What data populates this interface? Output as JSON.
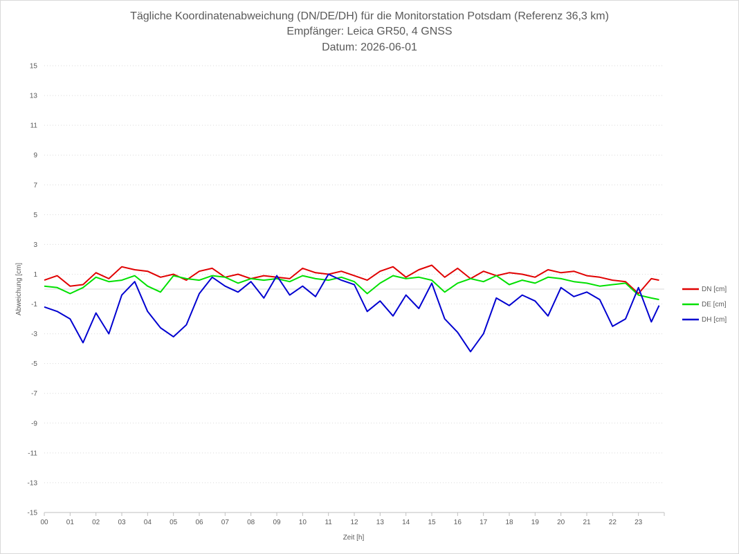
{
  "chart_data": {
    "type": "line",
    "title_lines": [
      "Tägliche Koordinatenabweichung (DN/DE/DH) für die Monitorstation Potsdam (Referenz 36,3 km)",
      "Empfänger: Leica GR50, 4 GNSS",
      "Datum: 2026-06-01"
    ],
    "xlabel": "Zeit [h]",
    "ylabel": "Abweichung [cm]",
    "ylim": [
      -15,
      15
    ],
    "yticks": [
      15,
      13,
      11,
      9,
      7,
      5,
      3,
      1,
      -1,
      -3,
      -5,
      -7,
      -9,
      -11,
      -13,
      -15
    ],
    "xlim": [
      0,
      24
    ],
    "xtick_labels": [
      "00",
      "01",
      "02",
      "03",
      "04",
      "05",
      "06",
      "07",
      "08",
      "09",
      "10",
      "11",
      "12",
      "13",
      "14",
      "15",
      "16",
      "17",
      "18",
      "19",
      "20",
      "21",
      "22",
      "23"
    ],
    "grid": "horizontal dotted",
    "legend_position": "right",
    "colors": {
      "DN": "#e00000",
      "DE": "#00e000",
      "DH": "#0000d0"
    },
    "series": [
      {
        "name": "DN [cm]",
        "x": [
          0,
          0.5,
          1,
          1.5,
          2,
          2.5,
          3,
          3.5,
          4,
          4.5,
          5,
          5.5,
          6,
          6.5,
          7,
          7.5,
          8,
          8.5,
          9,
          9.5,
          10,
          10.5,
          11,
          11.5,
          12,
          12.5,
          13,
          13.5,
          14,
          14.5,
          15,
          15.5,
          16,
          16.5,
          17,
          17.5,
          18,
          18.5,
          19,
          19.5,
          20,
          20.5,
          21,
          21.5,
          22,
          22.5,
          23,
          23.5,
          23.8
        ],
        "y": [
          0.6,
          0.9,
          0.2,
          0.3,
          1.1,
          0.7,
          1.5,
          1.3,
          1.2,
          0.8,
          1.0,
          0.6,
          1.2,
          1.4,
          0.8,
          1.0,
          0.7,
          0.9,
          0.8,
          0.7,
          1.4,
          1.1,
          1.0,
          1.2,
          0.9,
          0.6,
          1.2,
          1.5,
          0.8,
          1.3,
          1.6,
          0.8,
          1.4,
          0.7,
          1.2,
          0.9,
          1.1,
          1.0,
          0.8,
          1.3,
          1.1,
          1.2,
          0.9,
          0.8,
          0.6,
          0.5,
          -0.3,
          0.7,
          0.6
        ]
      },
      {
        "name": "DE [cm]",
        "x": [
          0,
          0.5,
          1,
          1.5,
          2,
          2.5,
          3,
          3.5,
          4,
          4.5,
          5,
          5.5,
          6,
          6.5,
          7,
          7.5,
          8,
          8.5,
          9,
          9.5,
          10,
          10.5,
          11,
          11.5,
          12,
          12.5,
          13,
          13.5,
          14,
          14.5,
          15,
          15.5,
          16,
          16.5,
          17,
          17.5,
          18,
          18.5,
          19,
          19.5,
          20,
          20.5,
          21,
          21.5,
          22,
          22.5,
          23,
          23.5,
          23.8
        ],
        "y": [
          0.2,
          0.1,
          -0.3,
          0.1,
          0.8,
          0.5,
          0.6,
          0.9,
          0.2,
          -0.2,
          0.9,
          0.7,
          0.6,
          0.9,
          0.8,
          0.4,
          0.7,
          0.6,
          0.7,
          0.5,
          0.9,
          0.7,
          0.6,
          0.8,
          0.5,
          -0.3,
          0.4,
          0.9,
          0.7,
          0.8,
          0.6,
          -0.2,
          0.4,
          0.7,
          0.5,
          0.9,
          0.3,
          0.6,
          0.4,
          0.8,
          0.7,
          0.5,
          0.4,
          0.2,
          0.3,
          0.4,
          -0.4,
          -0.6,
          -0.7
        ]
      },
      {
        "name": "DH [cm]",
        "x": [
          0,
          0.5,
          1,
          1.5,
          2,
          2.5,
          3,
          3.5,
          4,
          4.5,
          5,
          5.5,
          6,
          6.5,
          7,
          7.5,
          8,
          8.5,
          9,
          9.5,
          10,
          10.5,
          11,
          11.5,
          12,
          12.5,
          13,
          13.5,
          14,
          14.5,
          15,
          15.5,
          16,
          16.5,
          17,
          17.5,
          18,
          18.5,
          19,
          19.5,
          20,
          20.5,
          21,
          21.5,
          22,
          22.5,
          23,
          23.5,
          23.8
        ],
        "y": [
          -1.2,
          -1.5,
          -2.0,
          -3.6,
          -1.6,
          -3.0,
          -0.4,
          0.5,
          -1.5,
          -2.6,
          -3.2,
          -2.4,
          -0.3,
          0.8,
          0.2,
          -0.2,
          0.5,
          -0.6,
          0.9,
          -0.4,
          0.2,
          -0.5,
          1.0,
          0.6,
          0.3,
          -1.5,
          -0.8,
          -1.8,
          -0.4,
          -1.3,
          0.4,
          -2.0,
          -2.9,
          -4.2,
          -3.0,
          -0.6,
          -1.1,
          -0.4,
          -0.8,
          -1.8,
          0.1,
          -0.5,
          -0.2,
          -0.7,
          -2.5,
          -2.0,
          0.1,
          -2.2,
          -1.1
        ]
      }
    ]
  }
}
